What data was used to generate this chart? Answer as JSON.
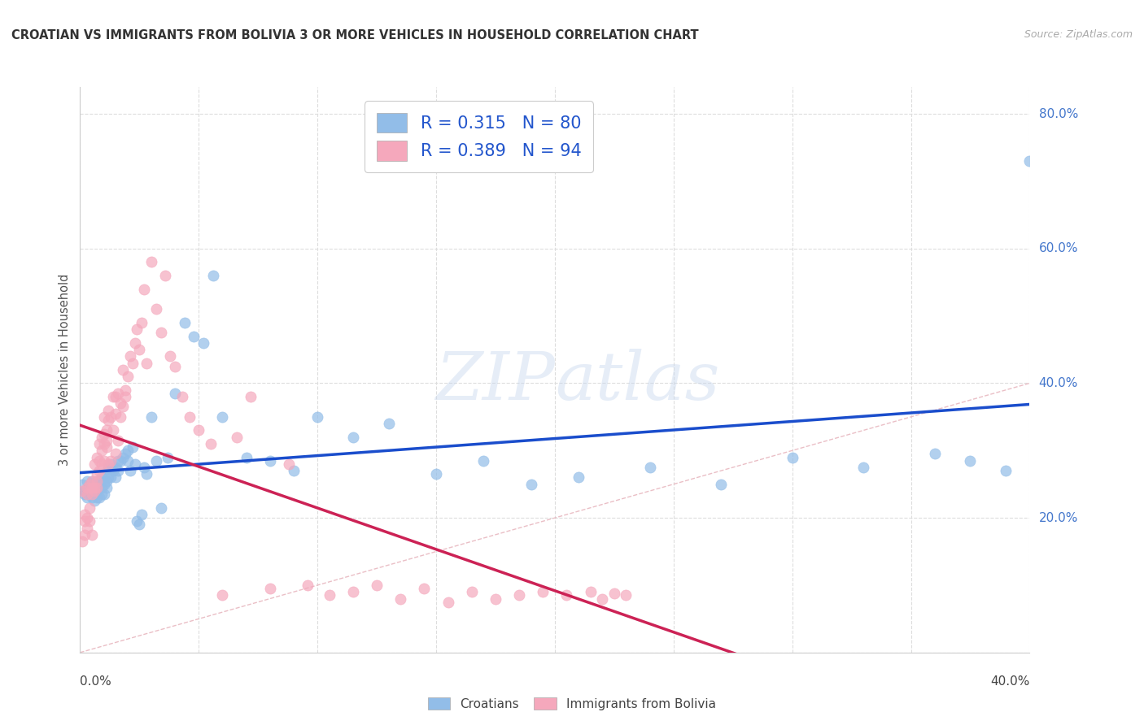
{
  "title": "CROATIAN VS IMMIGRANTS FROM BOLIVIA 3 OR MORE VEHICLES IN HOUSEHOLD CORRELATION CHART",
  "source": "Source: ZipAtlas.com",
  "ylabel": "3 or more Vehicles in Household",
  "xmin": 0.0,
  "xmax": 0.4,
  "ymin": 0.0,
  "ymax": 0.84,
  "ytick_positions": [
    0.2,
    0.4,
    0.6,
    0.8
  ],
  "ytick_labels": [
    "20.0%",
    "40.0%",
    "60.0%",
    "80.0%"
  ],
  "xtick_positions": [
    0.0,
    0.4
  ],
  "xtick_labels": [
    "0.0%",
    "40.0%"
  ],
  "grid_yticks": [
    0.0,
    0.2,
    0.4,
    0.6,
    0.8
  ],
  "watermark": "ZIPatlas",
  "legend_r1": "R = 0.315",
  "legend_n1": "N = 80",
  "legend_r2": "R = 0.389",
  "legend_n2": "N = 94",
  "color_croatian": "#92bde8",
  "color_bolivia": "#f5a8bc",
  "color_line_croatian": "#1a4dcc",
  "color_line_bolivia": "#cc2255",
  "color_diagonal": "#e8b8c0",
  "background_color": "#ffffff",
  "croatian_x": [
    0.001,
    0.002,
    0.002,
    0.003,
    0.003,
    0.003,
    0.004,
    0.004,
    0.005,
    0.005,
    0.005,
    0.005,
    0.006,
    0.006,
    0.006,
    0.007,
    0.007,
    0.007,
    0.007,
    0.008,
    0.008,
    0.008,
    0.009,
    0.009,
    0.009,
    0.01,
    0.01,
    0.01,
    0.011,
    0.011,
    0.012,
    0.012,
    0.013,
    0.013,
    0.014,
    0.015,
    0.015,
    0.016,
    0.016,
    0.017,
    0.018,
    0.019,
    0.02,
    0.02,
    0.021,
    0.022,
    0.023,
    0.024,
    0.025,
    0.026,
    0.027,
    0.028,
    0.03,
    0.032,
    0.034,
    0.037,
    0.04,
    0.044,
    0.048,
    0.052,
    0.056,
    0.06,
    0.07,
    0.08,
    0.09,
    0.1,
    0.115,
    0.13,
    0.15,
    0.17,
    0.19,
    0.21,
    0.24,
    0.27,
    0.3,
    0.33,
    0.36,
    0.375,
    0.39,
    0.4
  ],
  "croatian_y": [
    0.25,
    0.24,
    0.235,
    0.255,
    0.24,
    0.23,
    0.245,
    0.25,
    0.24,
    0.255,
    0.23,
    0.245,
    0.24,
    0.25,
    0.225,
    0.245,
    0.24,
    0.255,
    0.23,
    0.25,
    0.255,
    0.23,
    0.245,
    0.26,
    0.235,
    0.25,
    0.26,
    0.235,
    0.255,
    0.245,
    0.26,
    0.275,
    0.28,
    0.26,
    0.27,
    0.275,
    0.26,
    0.285,
    0.27,
    0.285,
    0.29,
    0.295,
    0.285,
    0.3,
    0.27,
    0.305,
    0.28,
    0.195,
    0.19,
    0.205,
    0.275,
    0.265,
    0.35,
    0.285,
    0.215,
    0.29,
    0.385,
    0.49,
    0.47,
    0.46,
    0.56,
    0.35,
    0.29,
    0.285,
    0.27,
    0.35,
    0.32,
    0.34,
    0.265,
    0.285,
    0.25,
    0.26,
    0.275,
    0.25,
    0.29,
    0.275,
    0.295,
    0.285,
    0.27,
    0.73
  ],
  "bolivia_x": [
    0.001,
    0.001,
    0.002,
    0.002,
    0.002,
    0.003,
    0.003,
    0.003,
    0.003,
    0.004,
    0.004,
    0.004,
    0.005,
    0.005,
    0.005,
    0.005,
    0.006,
    0.006,
    0.006,
    0.007,
    0.007,
    0.007,
    0.007,
    0.008,
    0.008,
    0.008,
    0.009,
    0.009,
    0.009,
    0.01,
    0.01,
    0.01,
    0.01,
    0.011,
    0.011,
    0.011,
    0.012,
    0.012,
    0.012,
    0.013,
    0.013,
    0.014,
    0.014,
    0.015,
    0.015,
    0.015,
    0.016,
    0.016,
    0.017,
    0.017,
    0.018,
    0.018,
    0.019,
    0.019,
    0.02,
    0.021,
    0.022,
    0.023,
    0.024,
    0.025,
    0.026,
    0.027,
    0.028,
    0.03,
    0.032,
    0.034,
    0.036,
    0.038,
    0.04,
    0.043,
    0.046,
    0.05,
    0.055,
    0.06,
    0.066,
    0.072,
    0.08,
    0.088,
    0.096,
    0.105,
    0.115,
    0.125,
    0.135,
    0.145,
    0.155,
    0.165,
    0.175,
    0.185,
    0.195,
    0.205,
    0.215,
    0.22,
    0.225,
    0.23
  ],
  "bolivia_y": [
    0.24,
    0.165,
    0.205,
    0.195,
    0.175,
    0.235,
    0.185,
    0.2,
    0.245,
    0.25,
    0.195,
    0.215,
    0.255,
    0.235,
    0.245,
    0.175,
    0.245,
    0.24,
    0.28,
    0.255,
    0.265,
    0.245,
    0.29,
    0.27,
    0.285,
    0.31,
    0.3,
    0.32,
    0.28,
    0.285,
    0.325,
    0.31,
    0.35,
    0.305,
    0.33,
    0.315,
    0.36,
    0.28,
    0.345,
    0.285,
    0.35,
    0.38,
    0.33,
    0.295,
    0.355,
    0.38,
    0.315,
    0.385,
    0.35,
    0.37,
    0.365,
    0.42,
    0.39,
    0.38,
    0.41,
    0.44,
    0.43,
    0.46,
    0.48,
    0.45,
    0.49,
    0.54,
    0.43,
    0.58,
    0.51,
    0.475,
    0.56,
    0.44,
    0.425,
    0.38,
    0.35,
    0.33,
    0.31,
    0.085,
    0.32,
    0.38,
    0.095,
    0.28,
    0.1,
    0.085,
    0.09,
    0.1,
    0.08,
    0.095,
    0.075,
    0.09,
    0.08,
    0.085,
    0.09,
    0.085,
    0.09,
    0.08,
    0.088,
    0.085
  ]
}
